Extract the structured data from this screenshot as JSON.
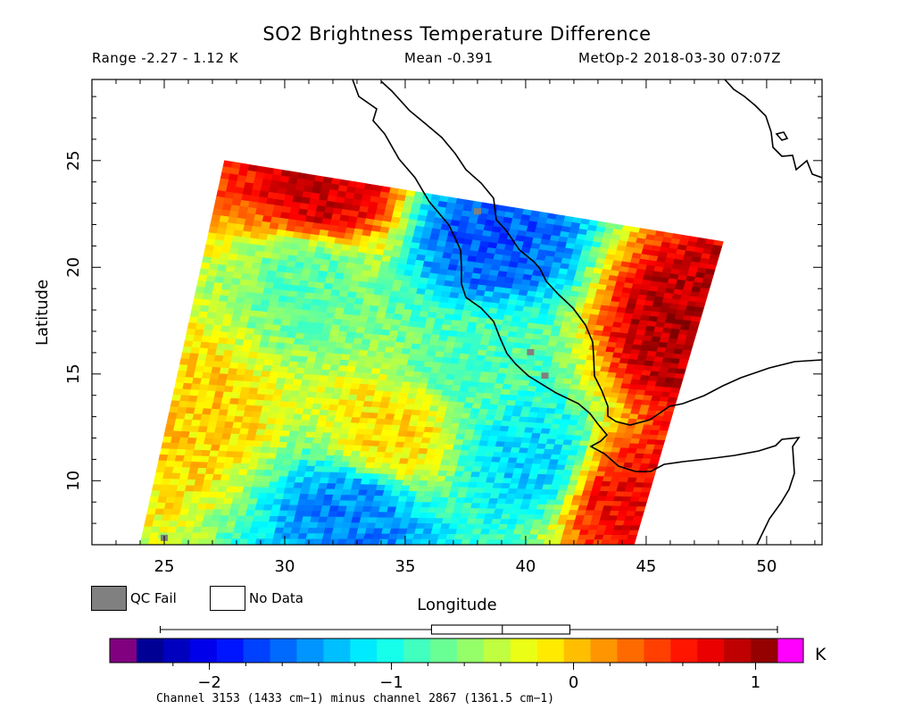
{
  "chart_data": {
    "type": "heatmap",
    "title": "SO2 Brightness Temperature Difference",
    "header": {
      "range": "Range -2.27 - 1.12 K",
      "mean": "Mean -0.391",
      "satellite": "MetOp-2 2018-03-30 07:07Z"
    },
    "xlabel": "Longitude",
    "ylabel": "Latitude",
    "xlim": [
      22,
      52.3
    ],
    "ylim": [
      7,
      28.8
    ],
    "x_ticks": [
      25,
      30,
      35,
      40,
      45,
      50
    ],
    "y_ticks": [
      10,
      15,
      20,
      25
    ],
    "legend": [
      {
        "label": "QC Fail",
        "color": "#808080"
      },
      {
        "label": "No Data",
        "color": "#ffffff"
      }
    ],
    "colorbar": {
      "min": -2.4,
      "max": 1.12,
      "ticks": [
        -2,
        -1,
        0,
        1
      ],
      "tick_labels": [
        "−2",
        "−1",
        "0",
        "1"
      ],
      "unit": "K",
      "under_color": "#800080",
      "over_color": "#ff00ff",
      "caption": "Channel 3153 (1433 cm−1) minus channel 2867 (1361.5 cm−1)",
      "boxplot": {
        "whisker_low": -2.27,
        "q1": -0.78,
        "median": -0.391,
        "q3": -0.02,
        "whisker_high": 1.12
      }
    },
    "swath_corners": {
      "top_left": [
        27.5,
        25.0
      ],
      "top_right": [
        48.2,
        21.2
      ],
      "bottom_right": [
        44.5,
        7.0
      ],
      "bottom_left": [
        24.0,
        7.0
      ]
    },
    "value_summary": {
      "min": -2.27,
      "max": 1.12,
      "mean": -0.391
    },
    "regions": [
      {
        "lon": 31.5,
        "lat": 23.5,
        "value": 0.85
      },
      {
        "lon": 38.5,
        "lat": 21.3,
        "value": -1.65
      },
      {
        "lon": 46.8,
        "lat": 17.0,
        "value": 0.95
      },
      {
        "lon": 44.5,
        "lat": 9.0,
        "value": 0.7
      },
      {
        "lon": 33.0,
        "lat": 8.5,
        "value": -1.5
      },
      {
        "lon": 40.0,
        "lat": 11.0,
        "value": -1.2
      },
      {
        "lon": 34.5,
        "lat": 12.0,
        "value": -0.1
      },
      {
        "lon": 26.0,
        "lat": 13.0,
        "value": -0.05
      },
      {
        "lon": 31.0,
        "lat": 19.5,
        "value": -0.75
      },
      {
        "lon": 38.0,
        "lat": 15.5,
        "value": -0.8
      }
    ],
    "qc_fail_points": [
      {
        "lon": 40.2,
        "lat": 16.0
      },
      {
        "lon": 40.8,
        "lat": 14.9
      },
      {
        "lon": 25.0,
        "lat": 7.3
      },
      {
        "lon": 38.0,
        "lat": 22.6
      }
    ]
  }
}
